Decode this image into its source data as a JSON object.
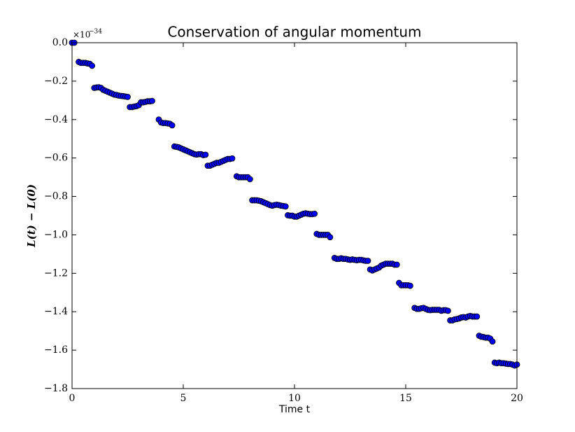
{
  "chart_data": {
    "type": "scatter",
    "title": "Conservation of angular momentum",
    "x_label": "Time t",
    "y_label": "L(t) − L(0)",
    "y_offset_base": "×10",
    "y_offset_exponent": "−34",
    "color": "#0000ff",
    "xlim": [
      0,
      20
    ],
    "xticks": [
      0,
      5,
      10,
      15,
      20
    ],
    "ylim": [
      -1.8,
      0
    ],
    "yticks": [
      {
        "value": 0,
        "label": "0.0"
      },
      {
        "value": -0.2,
        "label": "−0.2"
      },
      {
        "value": -0.4,
        "label": "−0.4"
      },
      {
        "value": -0.6,
        "label": "−0.6"
      },
      {
        "value": -0.8,
        "label": "−0.8"
      },
      {
        "value": -1.0,
        "label": "−1.0"
      },
      {
        "value": -1.2,
        "label": "−1.2"
      },
      {
        "value": -1.4,
        "label": "−1.4"
      },
      {
        "value": -1.6,
        "label": "−1.6"
      },
      {
        "value": -1.8,
        "label": "−1.8"
      }
    ],
    "x": [
      0,
      0.1,
      0.3,
      0.4,
      0.5,
      0.6,
      0.7,
      0.8,
      0.9,
      1.0,
      1.1,
      1.2,
      1.3,
      1.4,
      1.5,
      1.6,
      1.7,
      1.8,
      1.9,
      2.0,
      2.1,
      2.2,
      2.3,
      2.4,
      2.5,
      2.6,
      2.7,
      2.8,
      2.9,
      3.0,
      3.1,
      3.2,
      3.3,
      3.4,
      3.5,
      3.6,
      3.9,
      4.0,
      4.1,
      4.2,
      4.3,
      4.4,
      4.5,
      4.6,
      4.7,
      4.8,
      4.9,
      5.0,
      5.1,
      5.2,
      5.3,
      5.4,
      5.5,
      5.6,
      5.7,
      5.8,
      5.9,
      6.0,
      6.1,
      6.2,
      6.3,
      6.4,
      6.5,
      6.6,
      6.7,
      6.8,
      6.9,
      7.0,
      7.1,
      7.2,
      7.4,
      7.5,
      7.6,
      7.7,
      7.8,
      7.9,
      8.0,
      8.1,
      8.2,
      8.3,
      8.4,
      8.5,
      8.6,
      8.7,
      8.8,
      8.9,
      9.0,
      9.1,
      9.2,
      9.3,
      9.4,
      9.5,
      9.6,
      9.7,
      9.8,
      9.9,
      10.0,
      10.1,
      10.2,
      10.3,
      10.4,
      10.5,
      10.6,
      10.7,
      10.8,
      10.9,
      11.0,
      11.1,
      11.2,
      11.3,
      11.4,
      11.5,
      11.6,
      11.8,
      11.9,
      12.0,
      12.1,
      12.2,
      12.3,
      12.4,
      12.5,
      12.6,
      12.7,
      12.8,
      12.9,
      13.0,
      13.1,
      13.2,
      13.3,
      13.4,
      13.5,
      13.6,
      13.7,
      13.8,
      13.9,
      14.0,
      14.1,
      14.2,
      14.3,
      14.4,
      14.5,
      14.6,
      14.7,
      14.8,
      14.9,
      15.0,
      15.1,
      15.2,
      15.4,
      15.5,
      15.6,
      15.7,
      15.8,
      15.9,
      16.0,
      16.1,
      16.2,
      16.3,
      16.4,
      16.5,
      16.6,
      16.7,
      16.8,
      16.9,
      17.0,
      17.1,
      17.2,
      17.3,
      17.4,
      17.5,
      17.6,
      17.7,
      17.8,
      17.9,
      18.0,
      18.1,
      18.2,
      18.3,
      18.4,
      18.5,
      18.6,
      18.7,
      18.8,
      18.9,
      19.0,
      19.1,
      19.2,
      19.3,
      19.4,
      19.5,
      19.6,
      19.7,
      19.8,
      19.9,
      20.0
    ],
    "values": [
      0,
      0,
      -0.1,
      -0.105,
      -0.105,
      -0.105,
      -0.108,
      -0.11,
      -0.12,
      -0.235,
      -0.233,
      -0.232,
      -0.235,
      -0.245,
      -0.25,
      -0.255,
      -0.26,
      -0.265,
      -0.27,
      -0.272,
      -0.275,
      -0.277,
      -0.278,
      -0.28,
      -0.282,
      -0.335,
      -0.335,
      -0.332,
      -0.33,
      -0.325,
      -0.31,
      -0.31,
      -0.308,
      -0.305,
      -0.305,
      -0.303,
      -0.4,
      -0.415,
      -0.418,
      -0.418,
      -0.42,
      -0.422,
      -0.43,
      -0.54,
      -0.542,
      -0.545,
      -0.55,
      -0.555,
      -0.56,
      -0.565,
      -0.57,
      -0.575,
      -0.58,
      -0.582,
      -0.58,
      -0.58,
      -0.585,
      -0.583,
      -0.64,
      -0.64,
      -0.635,
      -0.63,
      -0.625,
      -0.625,
      -0.62,
      -0.615,
      -0.61,
      -0.605,
      -0.605,
      -0.602,
      -0.695,
      -0.7,
      -0.7,
      -0.7,
      -0.7,
      -0.7,
      -0.71,
      -0.82,
      -0.82,
      -0.82,
      -0.822,
      -0.825,
      -0.83,
      -0.835,
      -0.84,
      -0.845,
      -0.848,
      -0.845,
      -0.843,
      -0.845,
      -0.848,
      -0.85,
      -0.852,
      -0.898,
      -0.9,
      -0.9,
      -0.905,
      -0.905,
      -0.9,
      -0.895,
      -0.89,
      -0.888,
      -0.89,
      -0.892,
      -0.892,
      -0.89,
      -0.995,
      -1.0,
      -1.0,
      -1.0,
      -1.0,
      -1.0,
      -1.012,
      -1.12,
      -1.125,
      -1.125,
      -1.122,
      -1.125,
      -1.125,
      -1.128,
      -1.13,
      -1.128,
      -1.13,
      -1.132,
      -1.13,
      -1.13,
      -1.133,
      -1.135,
      -1.135,
      -1.18,
      -1.185,
      -1.18,
      -1.175,
      -1.17,
      -1.16,
      -1.155,
      -1.15,
      -1.15,
      -1.15,
      -1.15,
      -1.155,
      -1.155,
      -1.25,
      -1.262,
      -1.262,
      -1.262,
      -1.262,
      -1.265,
      -1.38,
      -1.385,
      -1.385,
      -1.382,
      -1.38,
      -1.385,
      -1.39,
      -1.392,
      -1.39,
      -1.39,
      -1.39,
      -1.39,
      -1.395,
      -1.392,
      -1.392,
      -1.395,
      -1.445,
      -1.445,
      -1.44,
      -1.438,
      -1.435,
      -1.43,
      -1.428,
      -1.43,
      -1.425,
      -1.422,
      -1.425,
      -1.425,
      -1.425,
      -1.525,
      -1.53,
      -1.532,
      -1.535,
      -1.535,
      -1.54,
      -1.555,
      -1.665,
      -1.668,
      -1.665,
      -1.668,
      -1.668,
      -1.67,
      -1.672,
      -1.672,
      -1.675,
      -1.68,
      -1.675
    ]
  }
}
